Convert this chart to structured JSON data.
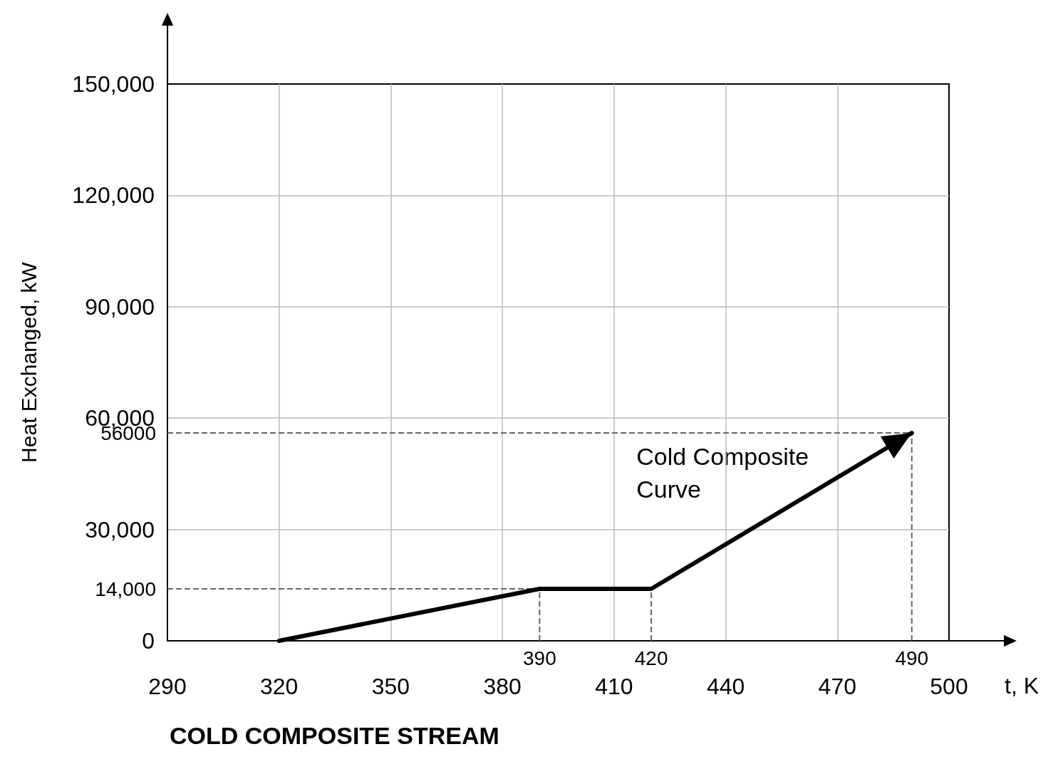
{
  "chart_data": {
    "type": "line",
    "title": "COLD COMPOSITE STREAM",
    "xlabel": "t, K",
    "ylabel": "Heat Exchanged, kW",
    "x": [
      320,
      390,
      420,
      490
    ],
    "values": [
      0,
      14000,
      14000,
      56000
    ],
    "color": "#000000",
    "xlim": [
      290,
      500
    ],
    "xticks": [
      290,
      320,
      350,
      380,
      410,
      440,
      470,
      500
    ],
    "ylim": [
      0,
      150000
    ],
    "yticks": [
      {
        "value": 0,
        "label": "0"
      },
      {
        "value": 30000,
        "label": "30,000"
      },
      {
        "value": 60000,
        "label": "60,000"
      },
      {
        "value": 90000,
        "label": "90,000"
      },
      {
        "value": 120000,
        "label": "120,000"
      },
      {
        "value": 150000,
        "label": "150,000"
      }
    ],
    "ref_lines": [
      {
        "axis": "y",
        "value": 14000,
        "label": "14,000",
        "line_style": "dashed"
      },
      {
        "axis": "y",
        "value": 56000,
        "label": "56000",
        "line_style": "dashed"
      },
      {
        "axis": "x",
        "value": 390,
        "label": "390",
        "line_style": "dashed"
      },
      {
        "axis": "x",
        "value": 420,
        "label": "420",
        "line_style": "dashed"
      },
      {
        "axis": "x",
        "value": 490,
        "label": "490",
        "line_style": "dashed"
      }
    ],
    "annotations": [
      "Cold Composite\nCurve"
    ],
    "grid": true
  }
}
